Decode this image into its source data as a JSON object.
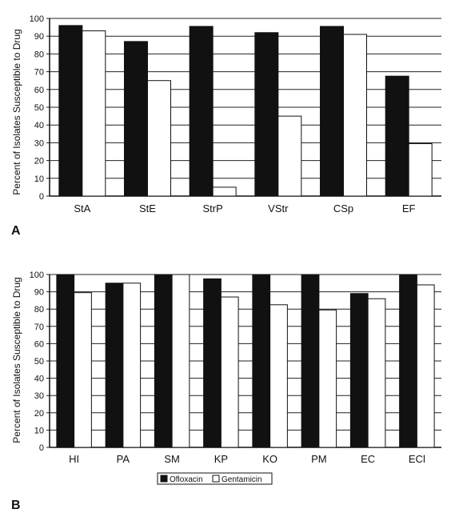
{
  "colors": {
    "ofloxacin": "#111111",
    "gentamicin": "#ffffff",
    "axis": "#111111"
  },
  "legend": {
    "ofloxacin": "Ofloxacin",
    "gentamicin": "Gentamicin"
  },
  "chart_data": [
    {
      "panel": "A",
      "type": "bar",
      "ylabel": "Percent of Isolates Susceptible to Drug",
      "ylim": [
        0,
        100
      ],
      "yticks": [
        "0",
        "10",
        "20",
        "30",
        "40",
        "50",
        "60",
        "70",
        "80",
        "90",
        "100"
      ],
      "grid": true,
      "categories": [
        "StA",
        "StE",
        "StrP",
        "VStr",
        "CSp",
        "EF"
      ],
      "series": [
        {
          "name": "Ofloxacin",
          "values": [
            96,
            87,
            95.5,
            92,
            95.5,
            67.5
          ]
        },
        {
          "name": "Gentamicin",
          "values": [
            93,
            65,
            5,
            45,
            91,
            29.5
          ]
        }
      ]
    },
    {
      "panel": "B",
      "type": "bar",
      "ylabel": "Percent of Isolates Susceptible to Drug",
      "ylim": [
        0,
        100
      ],
      "yticks": [
        "0",
        "10",
        "20",
        "30",
        "40",
        "50",
        "60",
        "70",
        "80",
        "90",
        "100"
      ],
      "grid": true,
      "legend_position": "bottom-center",
      "categories": [
        "HI",
        "PA",
        "SM",
        "KP",
        "KO",
        "PM",
        "EC",
        "ECl"
      ],
      "series": [
        {
          "name": "Ofloxacin",
          "values": [
            100,
            95,
            100,
            97.5,
            100,
            100,
            89,
            100
          ]
        },
        {
          "name": "Gentamicin",
          "values": [
            89.5,
            95,
            100,
            87,
            82.5,
            79.5,
            86,
            94
          ]
        }
      ]
    }
  ]
}
